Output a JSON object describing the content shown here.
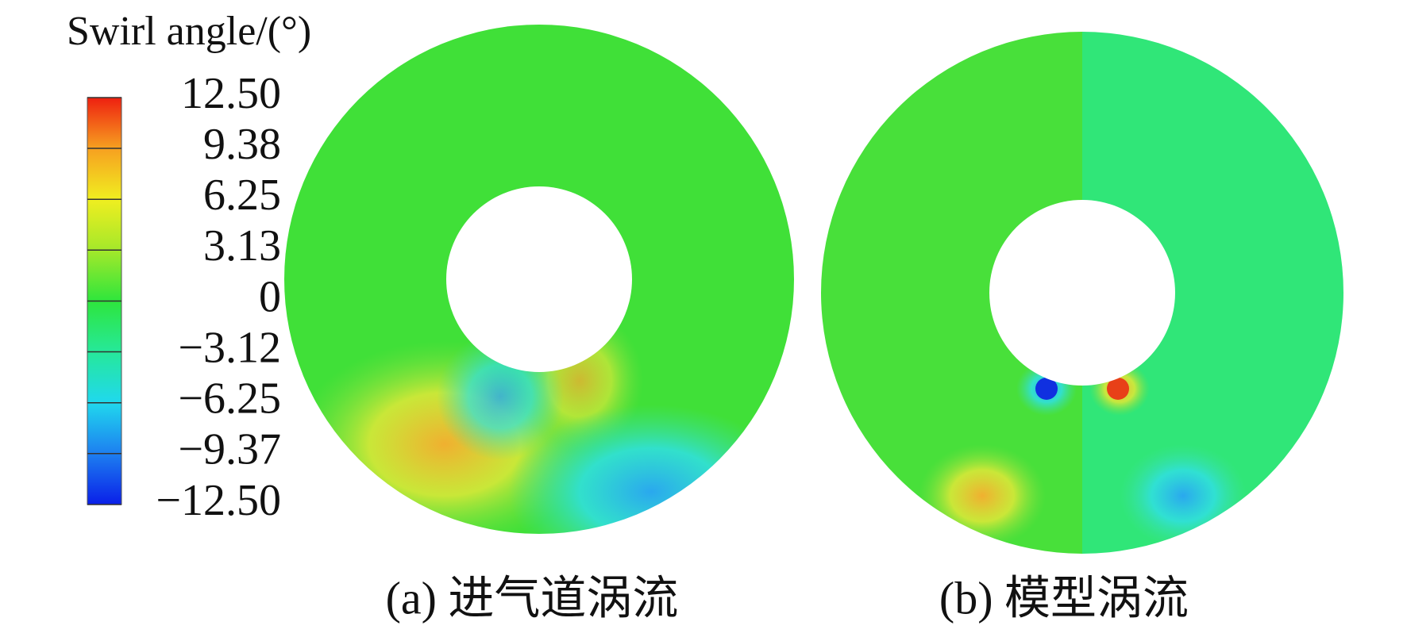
{
  "colorbar": {
    "title": "Swirl angle/(°)",
    "ticks": [
      {
        "value": 12.5,
        "label": "12.50"
      },
      9.38,
      6.25,
      3.13,
      0,
      {
        "value": -3.12,
        "label": "−3.12"
      },
      {
        "value": -6.25,
        "label": "−6.25"
      },
      {
        "value": -9.37,
        "label": "−9.37"
      },
      {
        "value": -12.5,
        "label": "−12.50"
      }
    ]
  },
  "panels": [
    {
      "caption": "(a) 进气道涡流"
    },
    {
      "caption": "(b) 模型涡流"
    }
  ]
}
